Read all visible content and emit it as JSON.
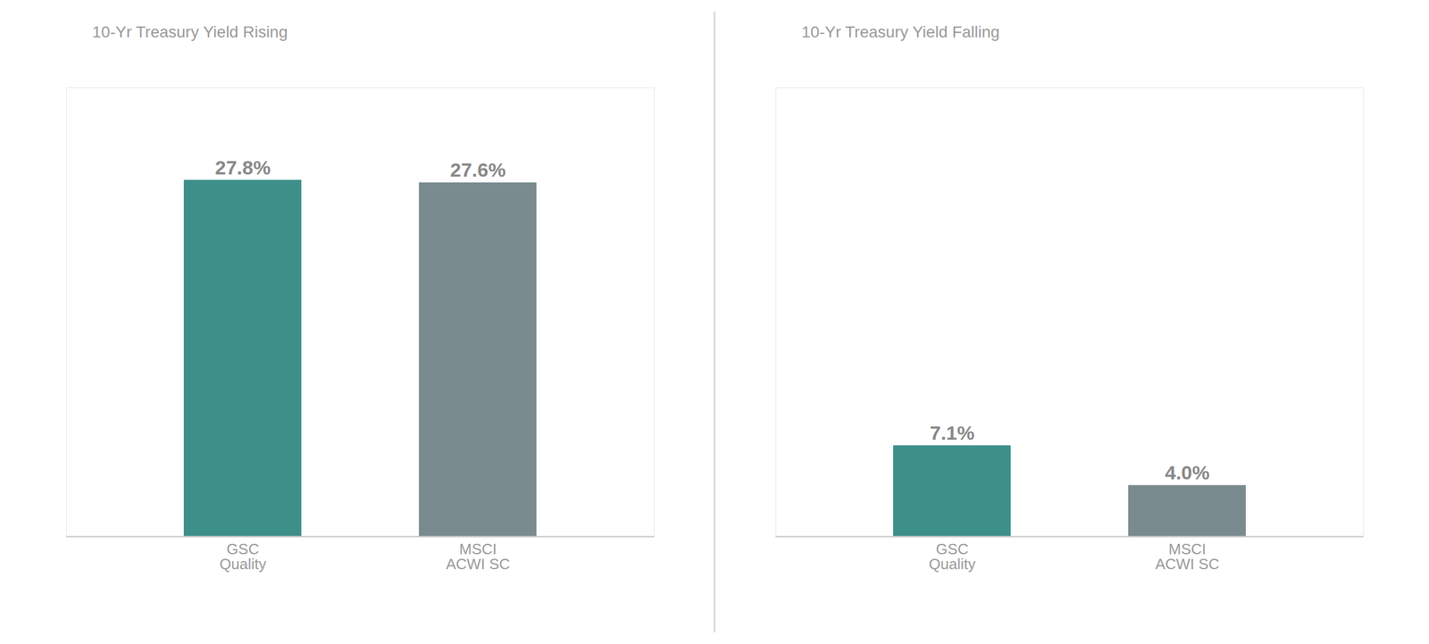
{
  "chart_data": [
    {
      "type": "bar",
      "title": "10-Yr Treasury Yield Rising",
      "categories": [
        "GSC\nQuality",
        "MSCI\nACWI SC"
      ],
      "values": [
        27.8,
        27.6
      ],
      "value_labels": [
        "27.8%",
        "27.6%"
      ],
      "colors": [
        "#3d8f8a",
        "#7a8b8f"
      ],
      "ylim": [
        0,
        35
      ],
      "grid": false,
      "data_labels": true,
      "tick_labels": "x"
    },
    {
      "type": "bar",
      "title": "10-Yr Treasury Yield Falling",
      "categories": [
        "GSC\nQuality",
        "MSCI\nACWI SC"
      ],
      "values": [
        7.1,
        4.0
      ],
      "value_labels": [
        "7.1%",
        "4.0%"
      ],
      "colors": [
        "#3d8f8a",
        "#7a8b8f"
      ],
      "ylim": [
        0,
        35
      ],
      "grid": false,
      "data_labels": true,
      "tick_labels": "x"
    }
  ]
}
